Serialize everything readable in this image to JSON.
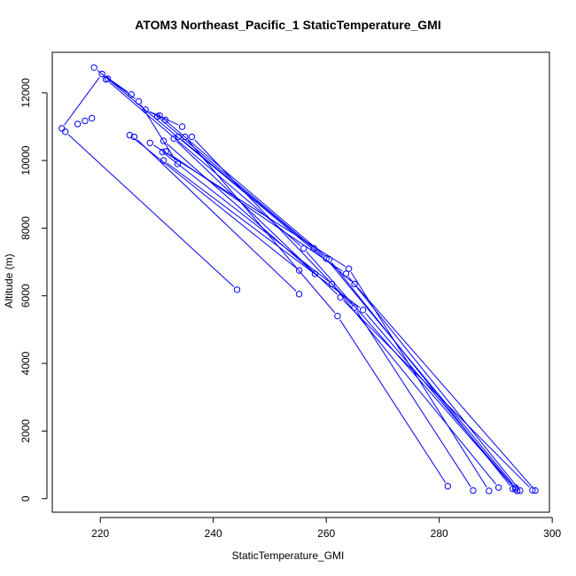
{
  "chart_data": {
    "type": "scatter",
    "title": "ATOM3 Northeast_Pacific_1 StaticTemperature_GMI",
    "xlabel": "StaticTemperature_GMI",
    "ylabel": "Altitude (m)",
    "xlim": [
      211.5,
      299.5
    ],
    "ylim": [
      -400,
      13200
    ],
    "x_ticks": [
      220,
      240,
      260,
      280,
      300
    ],
    "y_ticks": [
      0,
      2000,
      4000,
      6000,
      8000,
      10000,
      12000
    ],
    "grid": false,
    "legend": "none",
    "colors": {
      "series": "#0000ff",
      "axis": "#000000"
    },
    "points_style": "open-circle",
    "series": [
      {
        "x": [
          244.2,
          213.8
        ],
        "y": [
          6180,
          10850
        ]
      },
      {
        "x": [
          255.2,
          226.0
        ],
        "y": [
          6050,
          10700
        ]
      },
      {
        "x": [
          255.2,
          225.2
        ],
        "y": [
          6750,
          10750
        ]
      },
      {
        "x": [
          258.0,
          231.2
        ],
        "y": [
          6650,
          10580
        ]
      },
      {
        "x": [
          257.8,
          233.8
        ],
        "y": [
          7400,
          10700
        ]
      },
      {
        "x": [
          281.5,
          262.0,
          235.0
        ],
        "y": [
          370,
          5400,
          10700
        ]
      },
      {
        "x": [
          286.0,
          265.0,
          236.2
        ],
        "y": [
          240,
          5650,
          10700
        ]
      },
      {
        "x": [
          288.8,
          264.0,
          228.8
        ],
        "y": [
          230,
          6800,
          10520
        ]
      },
      {
        "x": [
          290.5,
          261.0,
          231.0
        ],
        "y": [
          330,
          6350,
          10250
        ]
      },
      {
        "x": [
          293.8,
          266.5,
          231.2
        ],
        "y": [
          230,
          5580,
          10000
        ]
      },
      {
        "x": [
          294.3,
          263.5,
          231.6
        ],
        "y": [
          240,
          6650,
          10270
        ]
      },
      {
        "x": [
          293.5,
          260.0,
          230.1
        ],
        "y": [
          330,
          7100,
          11300
        ]
      },
      {
        "x": [
          296.5,
          262.5,
          233.0
        ],
        "y": [
          250,
          5950,
          10650
        ]
      },
      {
        "x": [
          297.0,
          265.0,
          218.9
        ],
        "y": [
          240,
          6350,
          12750
        ]
      },
      {
        "x": [
          293.5,
          256.0,
          221.0
        ],
        "y": [
          280,
          7400,
          12400
        ]
      },
      {
        "x": [
          293.0,
          260.5,
          230.5
        ],
        "y": [
          290,
          7080,
          11330
        ]
      },
      {
        "x": [
          225.5,
          220.3,
          213.2
        ],
        "y": [
          11950,
          12560,
          10950
        ]
      },
      {
        "x": [
          233.7,
          226.8,
          221.3
        ],
        "y": [
          9900,
          11750,
          12420
        ]
      },
      {
        "x": [
          234.5,
          228.0,
          231.5
        ],
        "y": [
          11000,
          11500,
          11200
        ]
      },
      {
        "x": [
          216.0,
          217.3,
          218.5
        ],
        "y": [
          11080,
          11170,
          11250
        ]
      }
    ]
  }
}
